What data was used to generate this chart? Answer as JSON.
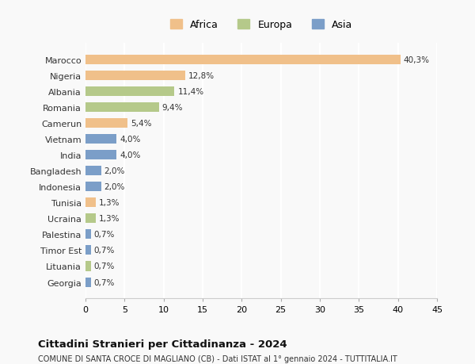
{
  "categories": [
    "Marocco",
    "Nigeria",
    "Albania",
    "Romania",
    "Camerun",
    "Vietnam",
    "India",
    "Bangladesh",
    "Indonesia",
    "Tunisia",
    "Ucraina",
    "Palestina",
    "Timor Est",
    "Lituania",
    "Georgia"
  ],
  "values": [
    40.3,
    12.8,
    11.4,
    9.4,
    5.4,
    4.0,
    4.0,
    2.0,
    2.0,
    1.3,
    1.3,
    0.7,
    0.7,
    0.7,
    0.7
  ],
  "labels": [
    "40,3%",
    "12,8%",
    "11,4%",
    "9,4%",
    "5,4%",
    "4,0%",
    "4,0%",
    "2,0%",
    "2,0%",
    "1,3%",
    "1,3%",
    "0,7%",
    "0,7%",
    "0,7%",
    "0,7%"
  ],
  "continents": [
    "Africa",
    "Africa",
    "Europa",
    "Europa",
    "Africa",
    "Asia",
    "Asia",
    "Asia",
    "Asia",
    "Africa",
    "Europa",
    "Asia",
    "Asia",
    "Europa",
    "Asia"
  ],
  "colors": {
    "Africa": "#f0c08a",
    "Europa": "#b5c98a",
    "Asia": "#7b9ec8"
  },
  "legend_items": [
    "Africa",
    "Europa",
    "Asia"
  ],
  "xlim": [
    0,
    45
  ],
  "xticks": [
    0,
    5,
    10,
    15,
    20,
    25,
    30,
    35,
    40,
    45
  ],
  "title": "Cittadini Stranieri per Cittadinanza - 2024",
  "subtitle": "COMUNE DI SANTA CROCE DI MAGLIANO (CB) - Dati ISTAT al 1° gennaio 2024 - TUTTITALIA.IT",
  "bg_color": "#f9f9f9",
  "grid_color": "#ffffff",
  "bar_height": 0.6
}
